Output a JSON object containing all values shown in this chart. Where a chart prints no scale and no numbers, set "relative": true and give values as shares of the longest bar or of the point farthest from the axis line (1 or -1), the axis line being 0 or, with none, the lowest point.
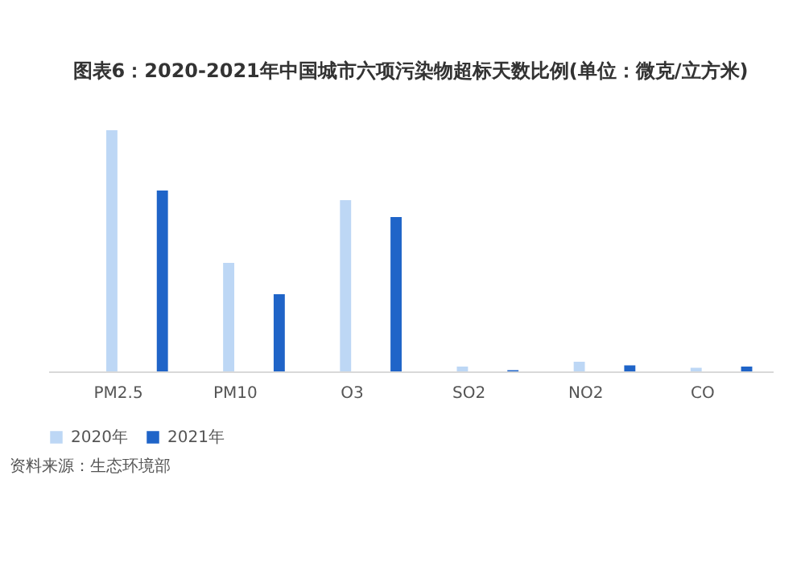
{
  "chart_data": {
    "type": "bar",
    "title": "图表6：2020-2021年中国城市六项污染物超标天数比例(单位：微克/立方米)",
    "categories": [
      "PM2.5",
      "PM10",
      "O3",
      "SO2",
      "NO2",
      "CO"
    ],
    "relative": true,
    "series": [
      {
        "name": "2020年",
        "color": "#bdd7f5",
        "values": [
          1,
          0.45,
          0.71,
          0.02,
          0.04,
          0.015
        ]
      },
      {
        "name": "2021年",
        "color": "#1f64c8",
        "values": [
          0.75,
          0.32,
          0.64,
          0.005,
          0.025,
          0.02
        ]
      }
    ],
    "legend": "bottom",
    "annotations": [
      "资料来源：生态环境部"
    ]
  }
}
